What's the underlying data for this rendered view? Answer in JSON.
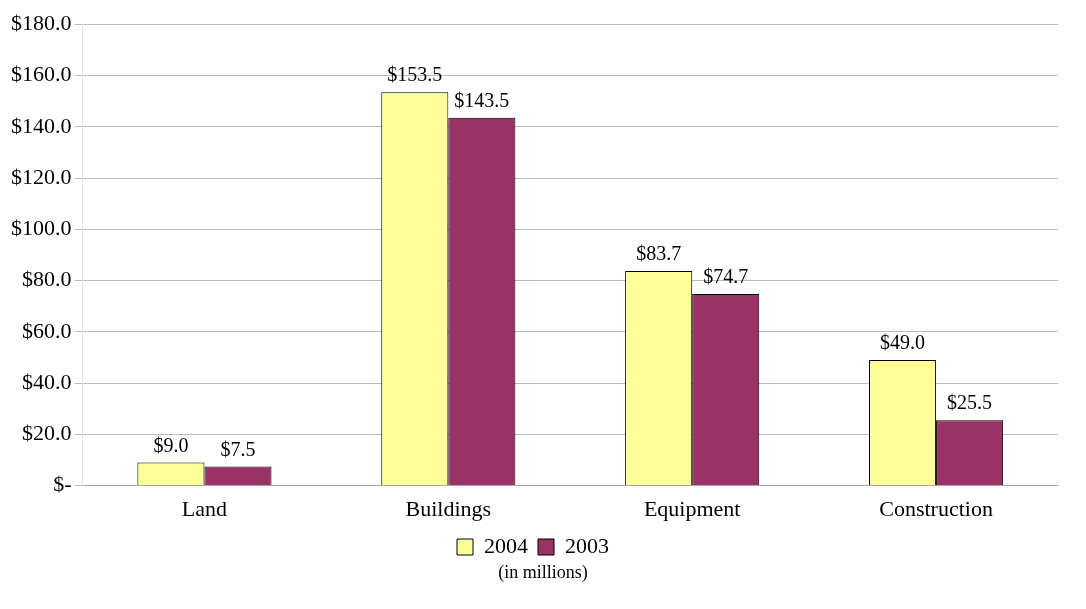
{
  "chart_data": {
    "type": "bar",
    "categories": [
      "Land",
      "Buildings",
      "Equipment",
      "Construction"
    ],
    "series": [
      {
        "name": "2004",
        "color": "#ffff99",
        "values": [
          9.0,
          153.5,
          83.7,
          49.0
        ],
        "value_labels": [
          "$9.0",
          "$153.5",
          "$83.7",
          "$49.0"
        ]
      },
      {
        "name": "2003",
        "color": "#993366",
        "values": [
          7.5,
          143.5,
          74.7,
          25.5
        ],
        "value_labels": [
          "$7.5",
          "$143.5",
          "$74.7",
          "$25.5"
        ]
      }
    ],
    "ylim": [
      0,
      180
    ],
    "yticks": [
      {
        "value": 0,
        "label": "$-"
      },
      {
        "value": 20,
        "label": "$20.0"
      },
      {
        "value": 40,
        "label": "$40.0"
      },
      {
        "value": 60,
        "label": "$60.0"
      },
      {
        "value": 80,
        "label": "$80.0"
      },
      {
        "value": 100,
        "label": "$100.0"
      },
      {
        "value": 120,
        "label": "$120.0"
      },
      {
        "value": 140,
        "label": "$140.0"
      },
      {
        "value": 160,
        "label": "$160.0"
      },
      {
        "value": 180,
        "label": "$180.0"
      }
    ],
    "grid": "y",
    "legend": "bottom",
    "annotations": [
      "(in millions)"
    ]
  }
}
